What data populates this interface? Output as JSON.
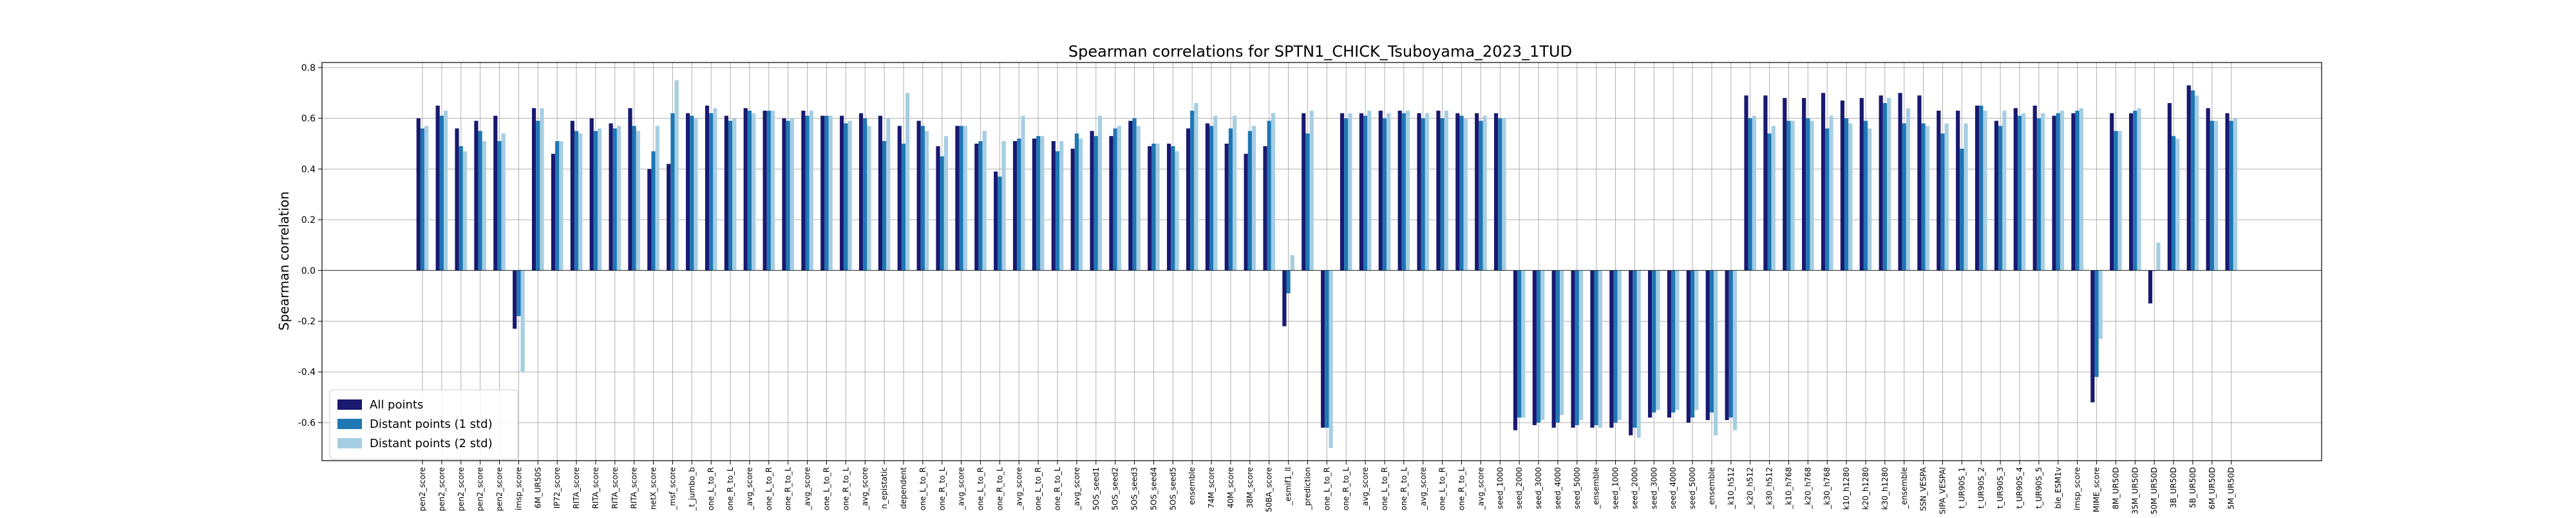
{
  "chart_data": {
    "type": "bar",
    "title": "Spearman correlations for SPTN1_CHICK_Tsuboyama_2023_1TUD",
    "xlabel": "",
    "ylabel": "Spearman correlation",
    "ylim": [
      -0.75,
      0.82
    ],
    "yticks": [
      -0.6,
      -0.4,
      -0.2,
      0.0,
      0.2,
      0.4,
      0.6,
      0.8
    ],
    "grid": true,
    "legend_position": "lower-left",
    "colors": [
      "#191970",
      "#1f77b4",
      "#a6cee3"
    ],
    "categories": [
      "pen2_score",
      "pen2_score",
      "pen2_score",
      "pen2_score",
      "pen2_score",
      "imsp_score",
      "6M_UR50S",
      "IP72_score",
      "RITA_score",
      "RITA_score",
      "RITA_score",
      "RITA_score",
      "netX_score",
      "_msf_score",
      "_t_jumbo_b",
      "one_L_to_R",
      "one_R_to_L",
      "_avg_score",
      "one_L_to_R",
      "one_R_to_L",
      "_avg_score",
      "one_L_to_R",
      "one_R_to_L",
      "_avg_score",
      "n_epistatic",
      "dependent",
      "one_L_to_R",
      "one_R_to_L",
      "_avg_score",
      "one_L_to_R",
      "one_R_to_L",
      "_avg_score",
      "one_L_to_R",
      "one_R_to_L",
      "_avg_score",
      "5OS_seed1",
      "5OS_seed2",
      "5OS_seed3",
      "5OS_seed4",
      "5OS_seed5",
      "ensemble",
      "74M_score",
      "40M_score",
      "38M_score",
      "50BA_score",
      "_esmif1_ll",
      "_prediction",
      "one_L_to_R",
      "one_R_to_L",
      "_avg_score",
      "one_L_to_R",
      "one_R_to_L",
      "_avg_score",
      "one_L_to_R",
      "one_R_to_L",
      "_avg_score",
      "seed_1000",
      "seed_2000",
      "seed_3000",
      "seed_4000",
      "seed_5000",
      "_ensemble",
      "seed_1000",
      "seed_2000",
      "seed_3000",
      "seed_4000",
      "seed_5000",
      "_ensemble",
      "_k10_h512",
      "_k20_h512",
      "_k30_h512",
      "_k10_h768",
      "_k20_h768",
      "_k30_h768",
      "k10_h1280",
      "k20_h1280",
      "k30_h1280",
      "_ensemble",
      "SSN_VESPA",
      "SIPA_VESPAl",
      "t_UR90S_1",
      "t_UR90S_2",
      "t_UR90S_3",
      "t_UR90S_4",
      "t_UR90S_5",
      "ble_ESM1v",
      "imsp_score",
      "MIME_score",
      "8M_UR50D",
      "35M_UR50D",
      "150M_UR50D",
      "3B_UR50D",
      "5B_UR50D",
      "6M_UR50D",
      "5M_UR50D"
    ],
    "series": [
      {
        "name": "All points",
        "values": [
          0.6,
          0.65,
          0.56,
          0.59,
          0.61,
          -0.23,
          0.64,
          0.46,
          0.59,
          0.6,
          0.58,
          0.64,
          0.4,
          0.42,
          0.62,
          0.65,
          0.61,
          0.64,
          0.63,
          0.6,
          0.63,
          0.61,
          0.61,
          0.62,
          0.61,
          0.57,
          0.59,
          0.49,
          0.57,
          0.5,
          0.39,
          0.51,
          0.52,
          0.51,
          0.48,
          0.55,
          0.53,
          0.59,
          0.49,
          0.5,
          0.56,
          0.58,
          0.5,
          0.46,
          0.49,
          -0.22,
          0.62,
          -0.62,
          0.62,
          0.62,
          0.63,
          0.63,
          0.62,
          0.63,
          0.62,
          0.62,
          0.62,
          -0.63,
          -0.61,
          -0.62,
          -0.62,
          -0.62,
          -0.62,
          -0.65,
          -0.58,
          -0.58,
          -0.6,
          -0.59,
          -0.59,
          0.69,
          0.69,
          0.68,
          0.68,
          0.7,
          0.67,
          0.68,
          0.69,
          0.7,
          0.69,
          0.63,
          0.63,
          0.65,
          0.59,
          0.64,
          0.65,
          0.61,
          0.62,
          -0.52,
          0.62,
          0.62,
          -0.13,
          0.66,
          0.73,
          0.64,
          0.62
        ]
      },
      {
        "name": "Distant points (1 std)",
        "values": [
          0.56,
          0.61,
          0.49,
          0.55,
          0.51,
          -0.18,
          0.59,
          0.51,
          0.55,
          0.55,
          0.56,
          0.57,
          0.47,
          0.62,
          0.61,
          0.62,
          0.59,
          0.63,
          0.63,
          0.59,
          0.61,
          0.61,
          0.58,
          0.6,
          0.51,
          0.5,
          0.57,
          0.45,
          0.57,
          0.51,
          0.37,
          0.52,
          0.53,
          0.47,
          0.54,
          0.53,
          0.56,
          0.6,
          0.5,
          0.49,
          0.63,
          0.57,
          0.56,
          0.55,
          0.59,
          -0.09,
          0.54,
          -0.62,
          0.6,
          0.61,
          0.6,
          0.62,
          0.6,
          0.6,
          0.61,
          0.59,
          0.6,
          -0.58,
          -0.6,
          -0.6,
          -0.61,
          -0.61,
          -0.6,
          -0.62,
          -0.56,
          -0.56,
          -0.58,
          -0.56,
          -0.58,
          0.6,
          0.54,
          0.59,
          0.6,
          0.56,
          0.6,
          0.59,
          0.66,
          0.58,
          0.58,
          0.54,
          0.48,
          0.65,
          0.57,
          0.61,
          0.6,
          0.62,
          0.63,
          -0.42,
          0.55,
          0.63,
          0.0,
          0.53,
          0.71,
          0.59,
          0.59
        ]
      },
      {
        "name": "Distant points (2 std)",
        "values": [
          0.57,
          0.63,
          0.47,
          0.51,
          0.54,
          -0.4,
          0.64,
          0.51,
          0.54,
          0.56,
          0.57,
          0.55,
          0.57,
          0.75,
          0.6,
          0.64,
          0.6,
          0.62,
          0.63,
          0.6,
          0.63,
          0.61,
          0.59,
          0.57,
          0.6,
          0.7,
          0.55,
          0.53,
          0.57,
          0.55,
          0.51,
          0.61,
          0.53,
          0.51,
          0.52,
          0.61,
          0.57,
          0.57,
          0.5,
          0.47,
          0.66,
          0.61,
          0.61,
          0.57,
          0.62,
          0.06,
          0.63,
          -0.7,
          0.62,
          0.63,
          0.62,
          0.63,
          0.62,
          0.63,
          0.6,
          0.61,
          0.6,
          -0.58,
          -0.59,
          -0.57,
          -0.59,
          -0.62,
          -0.59,
          -0.66,
          -0.55,
          -0.55,
          -0.55,
          -0.65,
          -0.63,
          0.61,
          0.57,
          0.59,
          0.59,
          0.61,
          0.58,
          0.56,
          0.68,
          0.64,
          0.57,
          0.58,
          0.58,
          0.63,
          0.63,
          0.62,
          0.62,
          0.63,
          0.64,
          -0.27,
          0.55,
          0.64,
          0.11,
          0.52,
          0.69,
          0.59,
          0.6
        ]
      }
    ]
  }
}
